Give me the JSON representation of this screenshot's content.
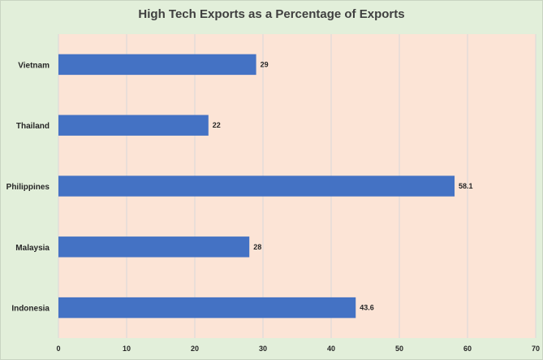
{
  "chart_data": {
    "type": "bar",
    "orientation": "horizontal",
    "title": "High Tech Exports as a Percentage of Exports",
    "categories": [
      "Vietnam",
      "Thailand",
      "Philippines",
      "Malaysia",
      "Indonesia"
    ],
    "values": [
      29,
      22,
      58.1,
      28,
      43.6
    ],
    "data_labels": [
      "29",
      "22",
      "58.1",
      "28",
      "43.6"
    ],
    "xlim": [
      0,
      70
    ],
    "x_ticks": [
      "0",
      "10",
      "20",
      "30",
      "40",
      "50",
      "60",
      "70"
    ],
    "grid": true,
    "legend": "none",
    "colors": {
      "bar": "#4472c4",
      "plot_area": "#fce4d6",
      "chart_area": "#e2efda",
      "gridline": "#d9d9d9"
    }
  }
}
